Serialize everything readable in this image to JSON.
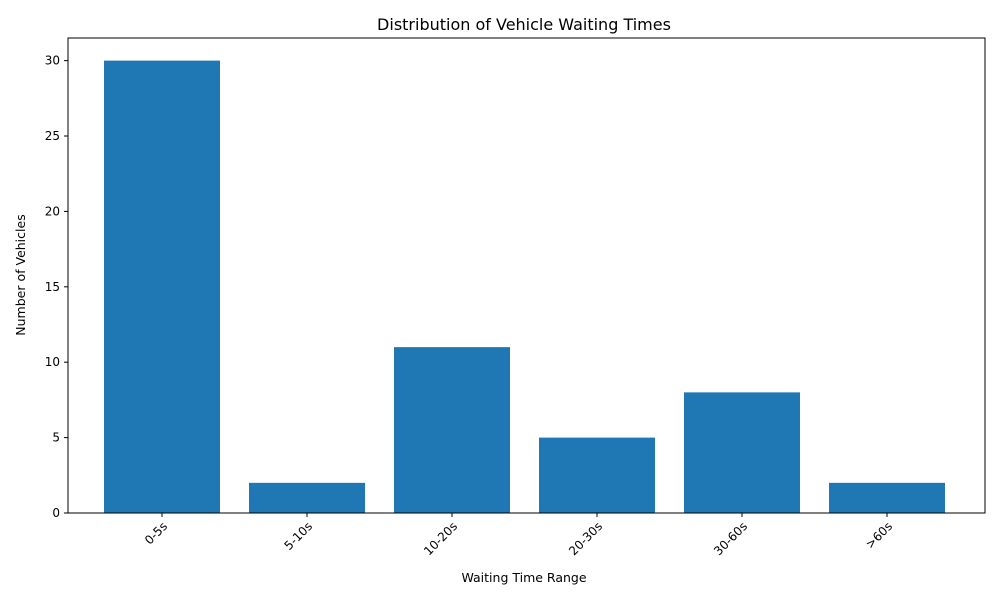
{
  "chart_data": {
    "type": "bar",
    "title": "Distribution of Vehicle Waiting Times",
    "xlabel": "Waiting Time Range",
    "ylabel": "Number of Vehicles",
    "categories": [
      "0-5s",
      "5-10s",
      "10-20s",
      "20-30s",
      "30-60s",
      ">60s"
    ],
    "values": [
      30,
      2,
      11,
      5,
      8,
      2
    ],
    "ylim": [
      0,
      31.5
    ],
    "yticks": [
      0,
      5,
      10,
      15,
      20,
      25,
      30
    ],
    "bar_color": "#1f77b4",
    "grid": false,
    "legend": "none"
  }
}
